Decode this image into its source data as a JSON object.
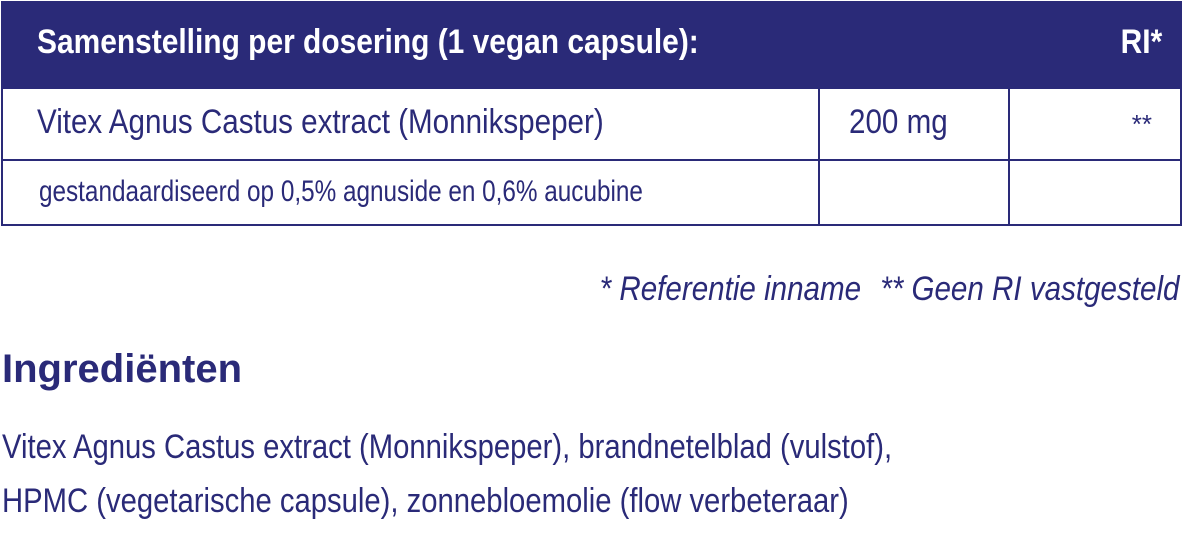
{
  "table": {
    "header_title": "Samenstelling per dosering (1 vegan capsule):",
    "header_ri": "RI*",
    "rows": [
      {
        "name": "Vitex Agnus Castus extract (Monnikspeper)",
        "amount": "200 mg",
        "ri": "**"
      },
      {
        "name": "gestandaardiseerd op 0,5% agnuside en 0,6% aucubine",
        "amount": "",
        "ri": ""
      }
    ]
  },
  "footnotes": {
    "ri": "* Referentie inname",
    "no_ri": "** Geen RI vastgesteld"
  },
  "ingredients": {
    "heading": "Ingrediënten",
    "lines": [
      "Vitex Agnus Castus extract (Monnikspeper), brandnetelblad (vulstof),",
      "HPMC (vegetarische capsule), zonnebloemolie (flow verbeteraar)"
    ]
  },
  "colors": {
    "brand_navy": "#2a2a78",
    "background": "#ffffff"
  }
}
